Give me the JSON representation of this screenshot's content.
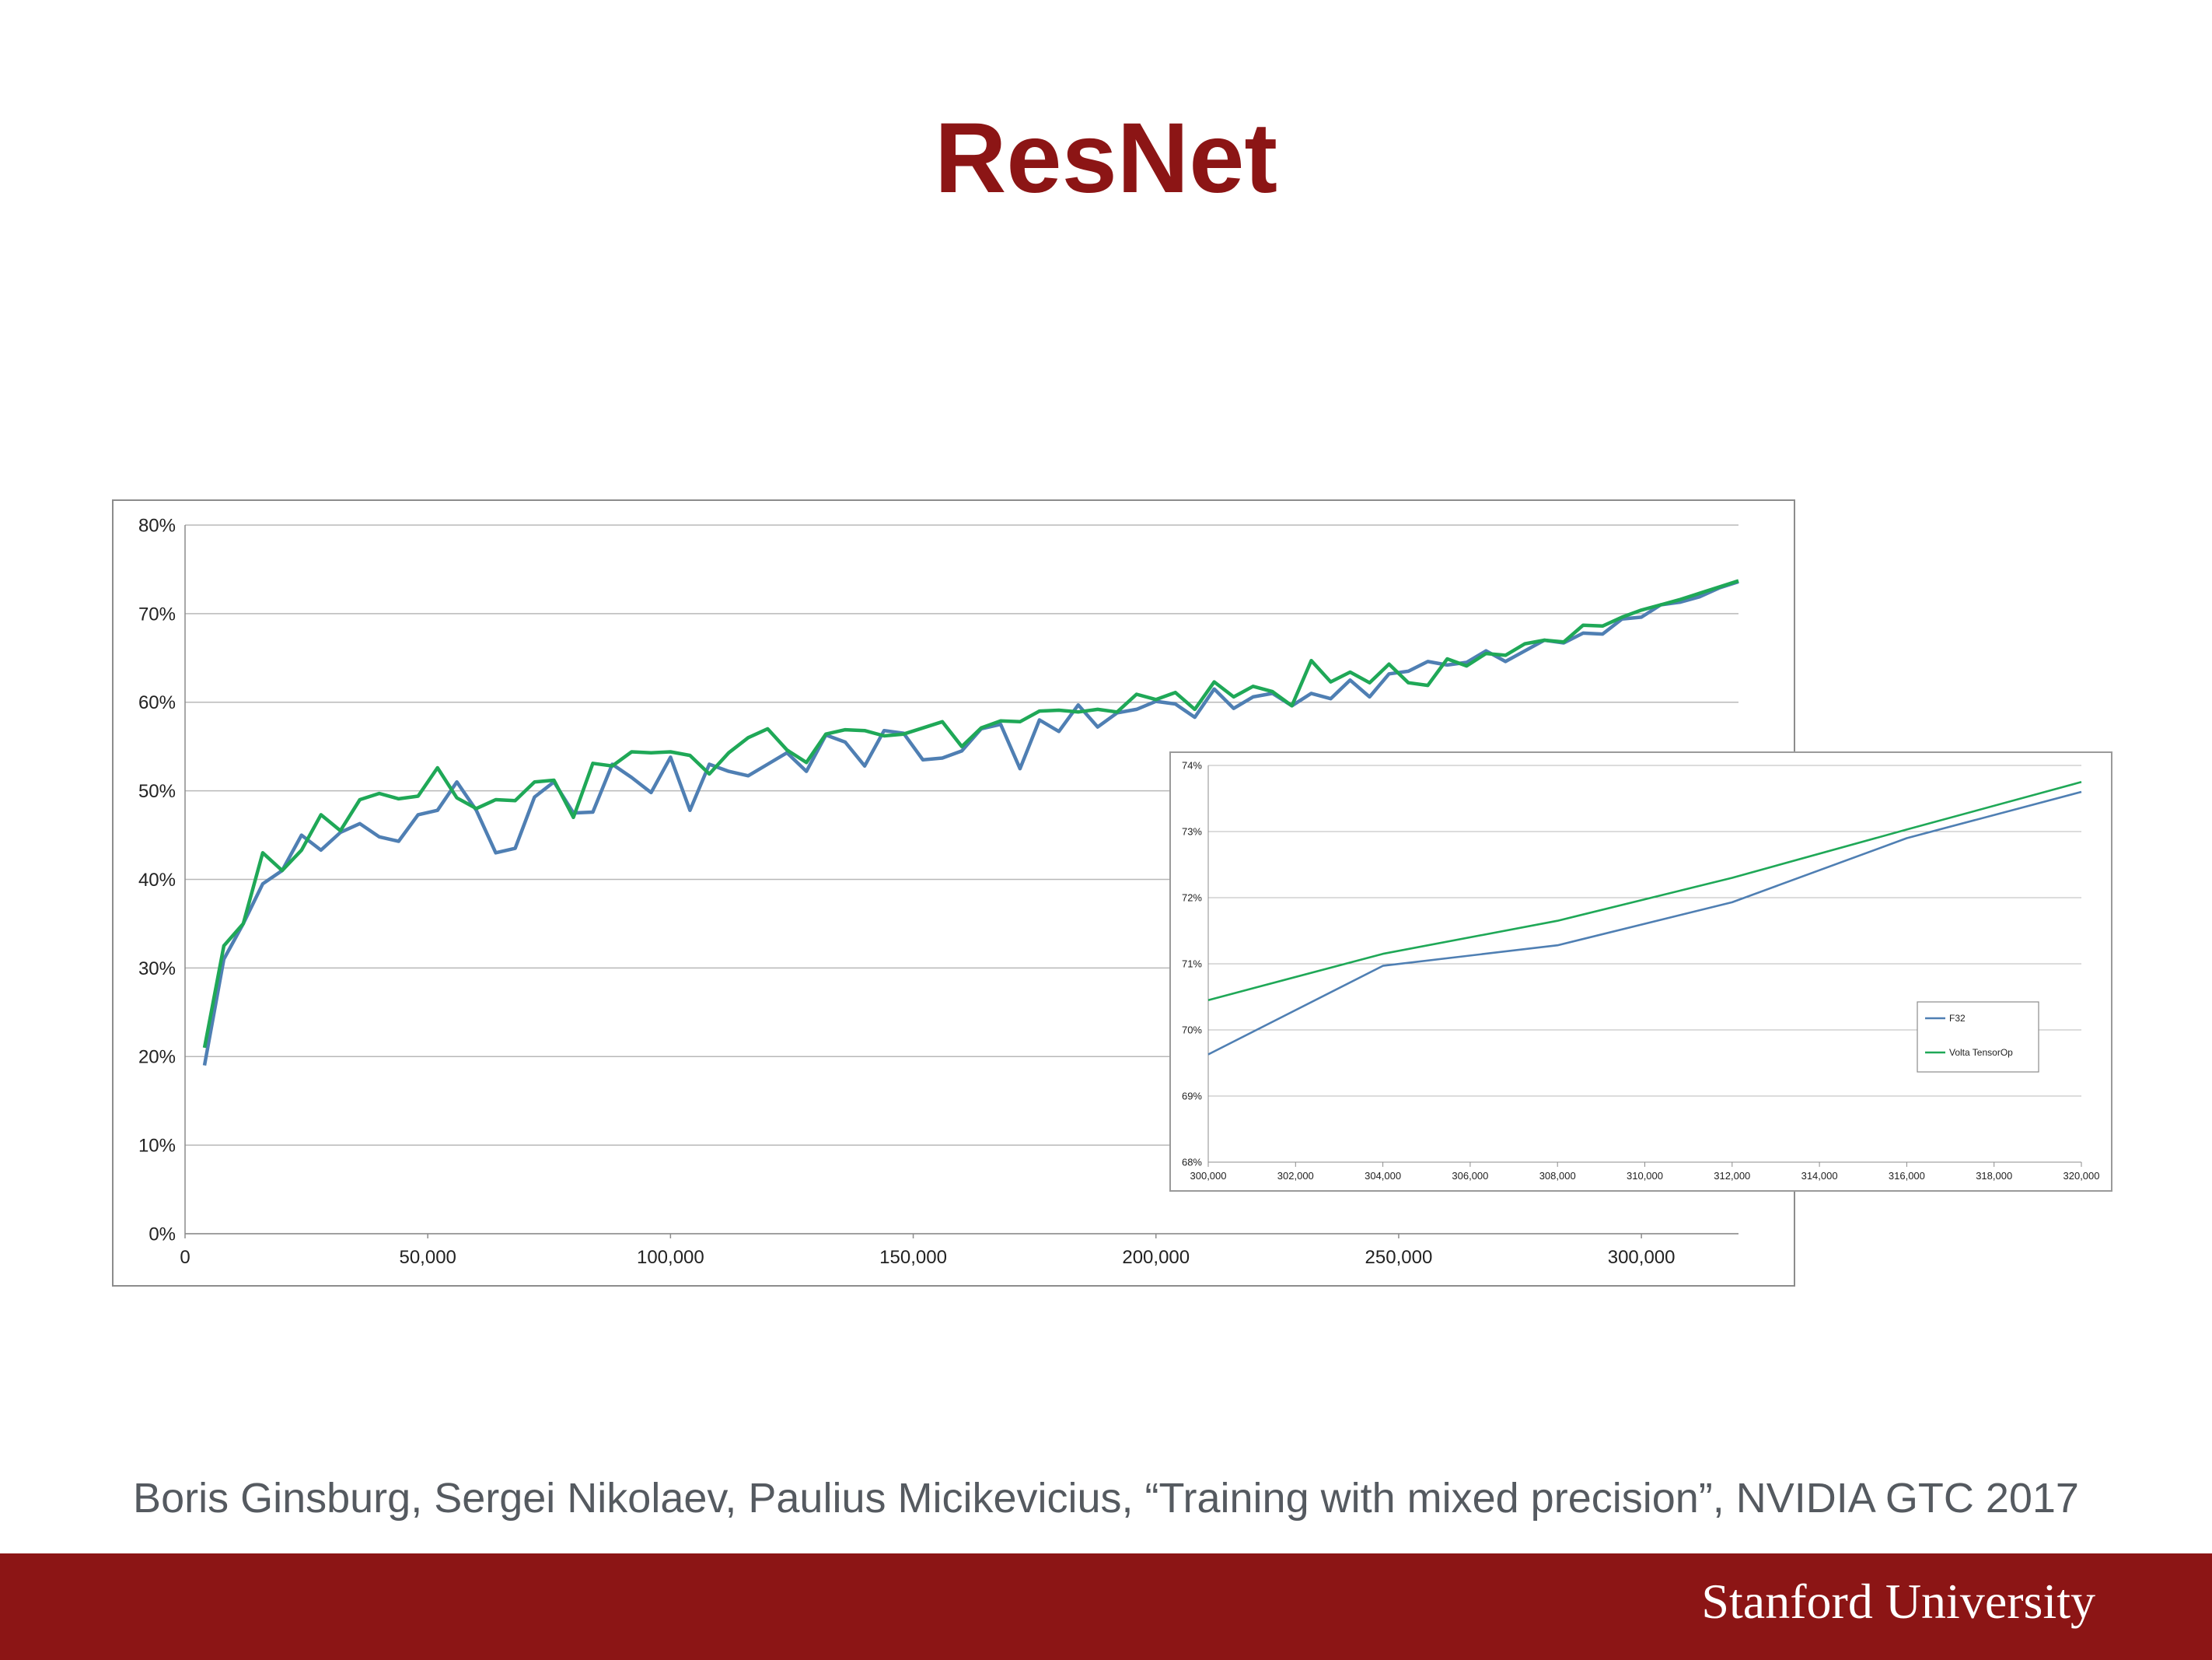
{
  "slide": {
    "title": "ResNet",
    "citation": "Boris Ginsburg, Sergei Nikolaev, Paulius Micikevicius, “Training with mixed precision”, NVIDIA GTC 2017",
    "footer_logo": "Stanford University"
  },
  "colors": {
    "brand": "#8c1515",
    "f32": "#4f7fb3",
    "tensorop": "#1fa857",
    "grid": "#b8b8b8"
  },
  "chart_data": [
    {
      "type": "line",
      "title": "",
      "xlabel": "",
      "ylabel": "",
      "xlim": [
        0,
        320000
      ],
      "ylim": [
        0,
        80
      ],
      "xticks": [
        "0",
        "50,000",
        "100,000",
        "150,000",
        "200,000",
        "250,000",
        "300,000"
      ],
      "xtick_values": [
        0,
        50000,
        100000,
        150000,
        200000,
        250000,
        300000
      ],
      "yticks": [
        "0%",
        "10%",
        "20%",
        "30%",
        "40%",
        "50%",
        "60%",
        "70%",
        "80%"
      ],
      "ytick_values": [
        0,
        10,
        20,
        30,
        40,
        50,
        60,
        70,
        80
      ],
      "grid": "horizontal",
      "legend": "none",
      "series": [
        {
          "name": "F32",
          "color": "#4f7fb3",
          "x": [
            4000,
            8000,
            12000,
            16000,
            20000,
            24000,
            28000,
            32000,
            36000,
            40000,
            44000,
            48000,
            52000,
            56000,
            60000,
            64000,
            68000,
            72000,
            76000,
            80000,
            84000,
            88000,
            92000,
            96000,
            100000,
            104000,
            108000,
            112000,
            116000,
            120000,
            124000,
            128000,
            132000,
            136000,
            140000,
            144000,
            148000,
            152000,
            156000,
            160000,
            164000,
            168000,
            172000,
            176000,
            180000,
            184000,
            188000,
            192000,
            196000,
            200000,
            204000,
            208000,
            212000,
            216000,
            220000,
            224000,
            228000,
            232000,
            236000,
            240000,
            244000,
            248000,
            252000,
            256000,
            260000,
            264000,
            268000,
            272000,
            276000,
            280000,
            284000,
            288000,
            292000,
            296000,
            300000,
            304000,
            308000,
            312000,
            316000,
            320000
          ],
          "y": [
            19,
            31,
            35,
            39.5,
            41,
            45,
            43.3,
            45.3,
            46.3,
            44.8,
            44.3,
            47.3,
            47.8,
            51,
            47.8,
            43,
            43.5,
            49.3,
            51,
            47.5,
            47.6,
            53,
            51.5,
            49.8,
            53.8,
            47.8,
            53,
            52.2,
            51.7,
            53,
            54.3,
            52.2,
            56.3,
            55.5,
            52.8,
            56.8,
            56.5,
            53.5,
            53.7,
            54.5,
            57,
            57.5,
            52.5,
            58,
            56.7,
            59.7,
            57.2,
            58.8,
            59.2,
            60.1,
            59.8,
            58.3,
            61.5,
            59.3,
            60.6,
            61,
            59.6,
            61,
            60.4,
            62.5,
            60.6,
            63.2,
            63.5,
            64.6,
            64.2,
            64.5,
            65.8,
            64.6,
            65.8,
            67,
            66.7,
            67.8,
            67.7,
            69.4,
            69.6,
            71,
            71.3,
            71.9,
            72.9,
            73.6
          ]
        },
        {
          "name": "Volta TensorOp",
          "color": "#1fa857",
          "x": [
            4000,
            8000,
            12000,
            16000,
            20000,
            24000,
            28000,
            32000,
            36000,
            40000,
            44000,
            48000,
            52000,
            56000,
            60000,
            64000,
            68000,
            72000,
            76000,
            80000,
            84000,
            88000,
            92000,
            96000,
            100000,
            104000,
            108000,
            112000,
            116000,
            120000,
            124000,
            128000,
            132000,
            136000,
            140000,
            144000,
            148000,
            152000,
            156000,
            160000,
            164000,
            168000,
            172000,
            176000,
            180000,
            184000,
            188000,
            192000,
            196000,
            200000,
            204000,
            208000,
            212000,
            216000,
            220000,
            224000,
            228000,
            232000,
            236000,
            240000,
            244000,
            248000,
            252000,
            256000,
            260000,
            264000,
            268000,
            272000,
            276000,
            280000,
            284000,
            288000,
            292000,
            296000,
            300000,
            304000,
            308000,
            312000,
            316000,
            320000
          ],
          "y": [
            21,
            32.5,
            35,
            43,
            41,
            43.3,
            47.3,
            45.5,
            49,
            49.7,
            49.1,
            49.4,
            52.6,
            49.2,
            48,
            49,
            48.9,
            51,
            51.2,
            47,
            53.1,
            52.8,
            54.4,
            54.3,
            54.4,
            54,
            51.9,
            54.3,
            56,
            57,
            54.6,
            53.2,
            56.4,
            56.9,
            56.8,
            56.2,
            56.4,
            57.1,
            57.8,
            55,
            57.1,
            57.9,
            57.8,
            59,
            59.1,
            58.9,
            59.2,
            58.9,
            60.9,
            60.3,
            61.1,
            59.2,
            62.3,
            60.6,
            61.8,
            61.2,
            59.6,
            64.7,
            62.3,
            63.4,
            62.2,
            64.3,
            62.2,
            61.9,
            64.9,
            64.1,
            65.5,
            65.3,
            66.6,
            67,
            66.8,
            68.7,
            68.6,
            69.6,
            70.4,
            71,
            71.6,
            72.3,
            73,
            73.7
          ]
        }
      ]
    },
    {
      "type": "line",
      "title": "",
      "xlabel": "",
      "ylabel": "",
      "xlim": [
        300000,
        320000
      ],
      "ylim": [
        68,
        74
      ],
      "xticks": [
        "300,000",
        "302,000",
        "304,000",
        "306,000",
        "308,000",
        "310,000",
        "312,000",
        "314,000",
        "316,000",
        "318,000",
        "320,000"
      ],
      "xtick_values": [
        300000,
        302000,
        304000,
        306000,
        308000,
        310000,
        312000,
        314000,
        316000,
        318000,
        320000
      ],
      "yticks": [
        "68%",
        "69%",
        "70%",
        "71%",
        "72%",
        "73%",
        "74%"
      ],
      "ytick_values": [
        68,
        69,
        70,
        71,
        72,
        73,
        74
      ],
      "grid": "horizontal",
      "legend": "right",
      "series": [
        {
          "name": "F32",
          "color": "#4f7fb3",
          "x": [
            300000,
            304000,
            308000,
            312000,
            316000,
            320000
          ],
          "y": [
            69.63,
            70.97,
            71.28,
            71.93,
            72.9,
            73.6
          ]
        },
        {
          "name": "Volta TensorOp",
          "color": "#1fa857",
          "x": [
            300000,
            304000,
            308000,
            312000,
            316000,
            320000
          ],
          "y": [
            70.45,
            71.15,
            71.65,
            72.3,
            73.03,
            73.75
          ]
        }
      ]
    }
  ]
}
